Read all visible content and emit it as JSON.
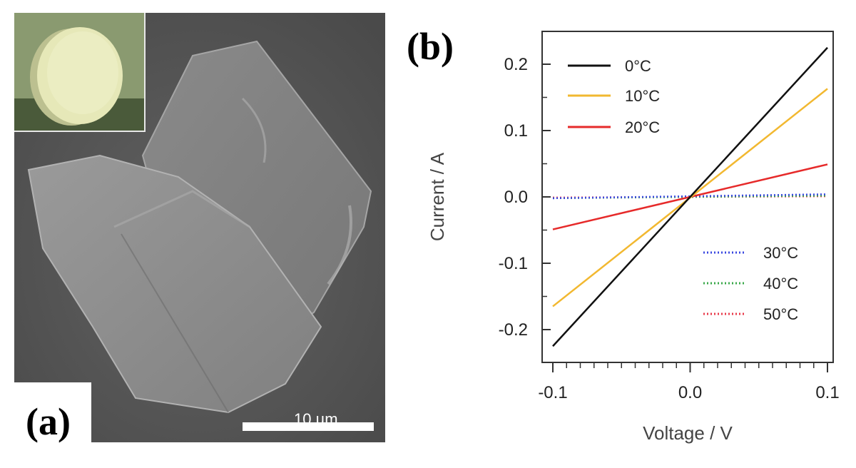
{
  "panel_a": {
    "label": "(a)",
    "scale_bar_label": "10 µm"
  },
  "panel_b": {
    "label": "(b)"
  },
  "colors": {
    "c0": "#111111",
    "c10": "#f2b830",
    "c20": "#e62a2a",
    "c30": "#3a48e0",
    "c40": "#3aa84a",
    "c50": "#e83a4a"
  },
  "chart_data": {
    "type": "line",
    "xlabel": "Voltage / V",
    "ylabel": "Current / A",
    "xlim": [
      -0.1,
      0.1
    ],
    "ylim": [
      -0.25,
      0.25
    ],
    "xticks": [
      "-0.1",
      "0.0",
      "0.1"
    ],
    "yticks": [
      "0.2",
      "0.1",
      "0.0",
      "-0.1",
      "-0.2"
    ],
    "series": [
      {
        "name": "0°C",
        "style": "solid",
        "x": [
          -0.1,
          0.1
        ],
        "y": [
          -0.225,
          0.225
        ]
      },
      {
        "name": "10°C",
        "style": "solid",
        "x": [
          -0.1,
          0.1
        ],
        "y": [
          -0.165,
          0.163
        ]
      },
      {
        "name": "20°C",
        "style": "solid",
        "x": [
          -0.1,
          0.1
        ],
        "y": [
          -0.049,
          0.049
        ]
      },
      {
        "name": "30°C",
        "style": "dotted",
        "x": [
          -0.1,
          0.1
        ],
        "y": [
          -0.002,
          0.004
        ]
      },
      {
        "name": "40°C",
        "style": "dotted",
        "x": [
          -0.1,
          0.1
        ],
        "y": [
          -0.002,
          0.002
        ]
      },
      {
        "name": "50°C",
        "style": "dotted",
        "x": [
          -0.1,
          0.1
        ],
        "y": [
          -0.001,
          0.001
        ]
      }
    ]
  }
}
